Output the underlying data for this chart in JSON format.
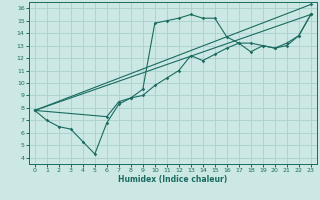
{
  "xlabel": "Humidex (Indice chaleur)",
  "bg_color": "#cce8e5",
  "grid_color": "#aacfcc",
  "line_color": "#1a6b60",
  "xlim": [
    -0.5,
    23.5
  ],
  "ylim": [
    3.5,
    16.5
  ],
  "xticks": [
    0,
    1,
    2,
    3,
    4,
    5,
    6,
    7,
    8,
    9,
    10,
    11,
    12,
    13,
    14,
    15,
    16,
    17,
    18,
    19,
    20,
    21,
    22,
    23
  ],
  "yticks": [
    4,
    5,
    6,
    7,
    8,
    9,
    10,
    11,
    12,
    13,
    14,
    15,
    16
  ],
  "line1_x": [
    0,
    1,
    2,
    3,
    4,
    5,
    6,
    7,
    8,
    9,
    10,
    11,
    12,
    13,
    14,
    15,
    16,
    17,
    18,
    19,
    20,
    21,
    22,
    23
  ],
  "line1_y": [
    7.8,
    7.0,
    6.5,
    6.3,
    5.3,
    4.3,
    6.8,
    8.3,
    8.8,
    9.5,
    14.8,
    15.0,
    15.2,
    15.5,
    15.2,
    15.2,
    13.7,
    13.2,
    13.2,
    13.0,
    12.8,
    13.2,
    13.8,
    15.5
  ],
  "line2_x": [
    0,
    23
  ],
  "line2_y": [
    7.8,
    15.5
  ],
  "line3_x": [
    0,
    23
  ],
  "line3_y": [
    7.8,
    16.3
  ],
  "line4_x": [
    0,
    6,
    7,
    8,
    9,
    10,
    11,
    12,
    13,
    14,
    15,
    16,
    17,
    18,
    19,
    20,
    21,
    22,
    23
  ],
  "line4_y": [
    7.8,
    7.3,
    8.5,
    8.8,
    9.0,
    9.8,
    10.4,
    11.0,
    12.2,
    11.8,
    12.3,
    12.8,
    13.2,
    12.5,
    13.0,
    12.8,
    13.0,
    13.8,
    15.5
  ]
}
